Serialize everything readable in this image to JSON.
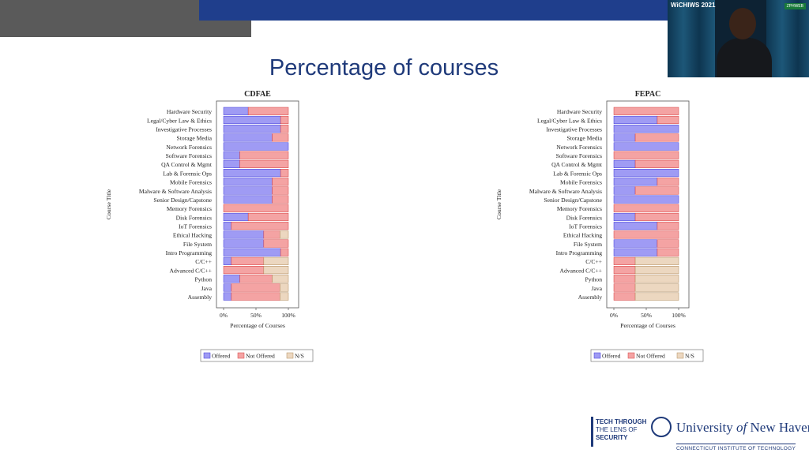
{
  "slide": {
    "title": "Percentage of courses",
    "footer": {
      "tech_line1": "TECH THROUGH",
      "tech_line2": "THE LENS OF",
      "tech_line3": "SECURITY",
      "university_prefix": "University ",
      "university_of": "of",
      "university_suffix": " New Haven",
      "institute": "CONNECTICUT INSTITUTE OF TECHNOLOGY"
    },
    "video": {
      "badge_left": "WiCHIWS 2021",
      "badge_right": "ZPHWEB"
    }
  },
  "colors": {
    "offered": "#9f9bf4",
    "not_offered": "#f4a3a3",
    "na": "#ecd7c0",
    "title": "#1f3a7a"
  },
  "chart_data": [
    {
      "type": "bar",
      "orientation": "horizontal",
      "stacked": true,
      "title": "CDFAE",
      "xlabel": "Percentage of Courses",
      "ylabel": "Course Title",
      "xlim": [
        0,
        100
      ],
      "xticks": [
        "0%",
        "50%",
        "100%"
      ],
      "legend_position": "bottom",
      "categories": [
        "Hardware Security",
        "Legal/Cyber Law & Ethics",
        "Investigative Processes",
        "Storage Media",
        "Network Forensics",
        "Software Forensics",
        "QA Control & Mgmt",
        "Lab & Forensic Ops",
        "Mobile Forensics",
        "Malware & Software Analysis",
        "Senior Design/Capstone",
        "Memory Forensics",
        "Disk Forensics",
        "IoT Forensics",
        "Ethical Hacking",
        "File System",
        "Intro Programming",
        "C/C++",
        "Advanced C/C++",
        "Python",
        "Java",
        "Assembly"
      ],
      "series": [
        {
          "name": "Offered",
          "values": [
            38,
            88,
            88,
            75,
            100,
            25,
            25,
            88,
            75,
            75,
            75,
            0,
            38,
            12,
            62,
            62,
            88,
            12,
            0,
            25,
            12,
            12
          ]
        },
        {
          "name": "Not Offered",
          "values": [
            62,
            12,
            12,
            25,
            0,
            75,
            75,
            12,
            25,
            25,
            25,
            100,
            62,
            88,
            25,
            38,
            12,
            50,
            62,
            50,
            75,
            75
          ]
        },
        {
          "name": "N/S",
          "values": [
            0,
            0,
            0,
            0,
            0,
            0,
            0,
            0,
            0,
            0,
            0,
            0,
            0,
            0,
            13,
            0,
            0,
            38,
            38,
            25,
            13,
            13
          ]
        }
      ]
    },
    {
      "type": "bar",
      "orientation": "horizontal",
      "stacked": true,
      "title": "FEPAC",
      "xlabel": "Percentage of Courses",
      "ylabel": "Course Title",
      "xlim": [
        0,
        100
      ],
      "xticks": [
        "0%",
        "50%",
        "100%"
      ],
      "legend_position": "bottom",
      "categories": [
        "Hardware Security",
        "Legal/Cyber Law & Ethics",
        "Investigative Processes",
        "Storage Media",
        "Network Forensics",
        "Software Forensics",
        "QA Control & Mgmt",
        "Lab & Forensic Ops",
        "Mobile Forensics",
        "Malware & Software Analysis",
        "Senior Design/Capstone",
        "Memory Forensics",
        "Disk Forensics",
        "IoT Forensics",
        "Ethical Hacking",
        "File System",
        "Intro Programming",
        "C/C++",
        "Advanced C/C++",
        "Python",
        "Java",
        "Assembly"
      ],
      "series": [
        {
          "name": "Offered",
          "values": [
            0,
            67,
            100,
            33,
            100,
            0,
            33,
            100,
            67,
            33,
            100,
            0,
            33,
            67,
            0,
            67,
            67,
            0,
            0,
            0,
            0,
            0
          ]
        },
        {
          "name": "Not Offered",
          "values": [
            100,
            33,
            0,
            67,
            0,
            100,
            67,
            0,
            33,
            67,
            0,
            100,
            67,
            33,
            100,
            33,
            33,
            33,
            33,
            33,
            33,
            33
          ]
        },
        {
          "name": "N/S",
          "values": [
            0,
            0,
            0,
            0,
            0,
            0,
            0,
            0,
            0,
            0,
            0,
            0,
            0,
            0,
            0,
            0,
            0,
            67,
            67,
            67,
            67,
            67
          ]
        }
      ]
    }
  ]
}
